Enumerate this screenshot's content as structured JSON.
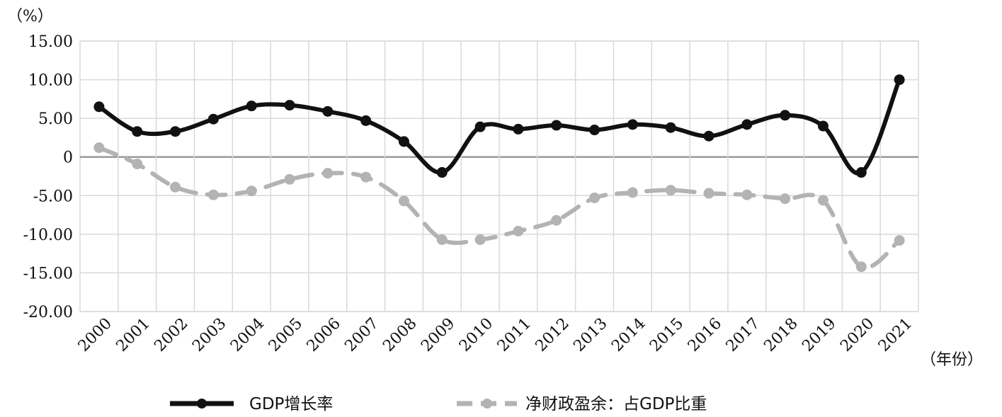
{
  "chart_data": {
    "type": "line",
    "y_unit": "（%）",
    "x_unit": "（年份）",
    "categories": [
      "2000",
      "2001",
      "2002",
      "2003",
      "2004",
      "2005",
      "2006",
      "2007",
      "2008",
      "2009",
      "2010",
      "2011",
      "2012",
      "2013",
      "2014",
      "2015",
      "2016",
      "2017",
      "2018",
      "2019",
      "2020",
      "2021"
    ],
    "ylim": [
      -20,
      15
    ],
    "yticks": [
      {
        "value": 15,
        "label": "15.00"
      },
      {
        "value": 10,
        "label": "10.00"
      },
      {
        "value": 5,
        "label": "5.00"
      },
      {
        "value": 0,
        "label": "0"
      },
      {
        "value": -5,
        "label": "-5.00"
      },
      {
        "value": -10,
        "label": "-10.00"
      },
      {
        "value": -15,
        "label": "-15.00"
      },
      {
        "value": -20,
        "label": "-20.00"
      }
    ],
    "grid": true,
    "legend_position": "bottom",
    "series": [
      {
        "name": "GDP增长率",
        "style": "solid",
        "color": "#111111",
        "values": [
          6.5,
          3.3,
          3.3,
          4.9,
          6.6,
          6.7,
          5.9,
          4.7,
          2.0,
          -2.0,
          3.9,
          3.6,
          4.1,
          3.5,
          4.2,
          3.8,
          2.7,
          4.2,
          5.4,
          4.0,
          -2.0,
          10.0
        ]
      },
      {
        "name": "净财政盈余：占GDP比重",
        "style": "dashed",
        "color": "#b3b3b3",
        "values": [
          1.2,
          -0.9,
          -3.9,
          -4.9,
          -4.4,
          -2.9,
          -2.1,
          -2.6,
          -5.7,
          -10.7,
          -10.7,
          -9.6,
          -8.2,
          -5.3,
          -4.6,
          -4.3,
          -4.7,
          -4.9,
          -5.4,
          -5.6,
          -14.2,
          -10.8
        ]
      }
    ]
  }
}
